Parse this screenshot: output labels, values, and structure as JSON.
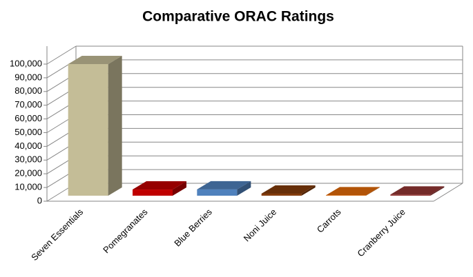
{
  "chart_data": {
    "type": "bar3d",
    "title": "Comparative ORAC Ratings",
    "categories": [
      "Seven Essentials",
      "Pomegranates",
      "Blue Berries",
      "Noni Juice",
      "Carrots",
      "Cranberry Juice"
    ],
    "values": [
      96000,
      4500,
      4600,
      1500,
      300,
      800
    ],
    "colors": [
      "#c4bd97",
      "#c00000",
      "#4f81bd",
      "#843c0c",
      "#e46c0a",
      "#953735"
    ],
    "ylim": [
      0,
      100000
    ],
    "yticks": [
      0,
      {
        "value": 10000,
        "label": "10,000"
      },
      {
        "value": 20000,
        "label": "20,000"
      },
      {
        "value": 30000,
        "label": "30,000"
      },
      {
        "value": 40000,
        "label": "40,000"
      },
      {
        "value": 50000,
        "label": "50,000"
      },
      {
        "value": 60000,
        "label": "60,000"
      },
      {
        "value": 70000,
        "label": "70,000"
      },
      {
        "value": 80000,
        "label": "80,000"
      },
      {
        "value": 90000,
        "label": "90,000"
      },
      {
        "value": 100000,
        "label": "100,000"
      }
    ],
    "grid": true
  }
}
